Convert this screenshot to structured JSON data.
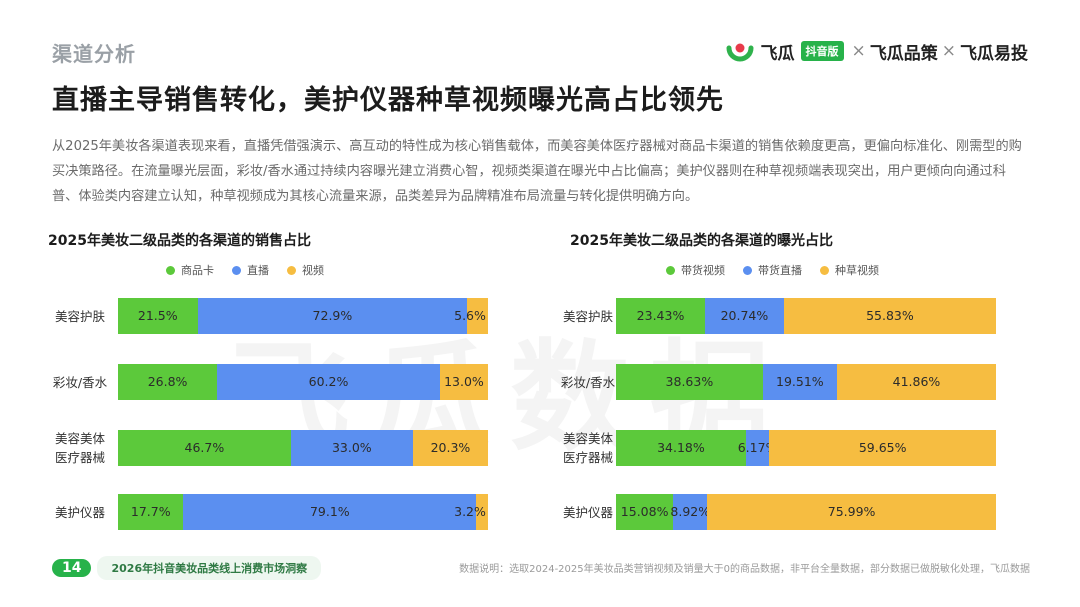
{
  "header": {
    "section": "渠道分析",
    "title": "直播主导销售转化，美护仪器种草视频曝光高占比领先",
    "body": "从2025年美妆各渠道表现来看，直播凭借强演示、高互动的特性成为核心销售载体，而美容美体医疗器械对商品卡渠道的销售依赖度更高，更偏向标准化、刚需型的购买决策路径。在流量曝光层面，彩妆/香水通过持续内容曝光建立消费心智，视频类渠道在曝光中占比偏高；美护仪器则在种草视频端表现突出，用户更倾向向通过科普、体验类内容建立认知，种草视频成为其核心流量来源，品类差异为品牌精准布局流量与转化提供明确方向。"
  },
  "brand": {
    "name1": "飞瓜",
    "badge": "抖音版",
    "sep": "×",
    "name2": "飞瓜品策",
    "name3": "飞瓜易投"
  },
  "watermark": "飞瓜数据",
  "colors": {
    "green": "#5cc93b",
    "blue": "#5b8ff0",
    "yellow": "#f6bd41"
  },
  "chart_data": [
    {
      "type": "bar",
      "orientation": "horizontal-stacked-100",
      "title": "2025年美妆二级品类的各渠道的销售占比",
      "categories": [
        "美容护肤",
        "彩妆/香水",
        "美容美体医疗器械",
        "美护仪器"
      ],
      "category_lines": [
        [
          "美容护肤"
        ],
        [
          "彩妆/香水"
        ],
        [
          "美容美体",
          "医疗器械"
        ],
        [
          "美护仪器"
        ]
      ],
      "series": [
        {
          "name": "商品卡",
          "color": "#5cc93b",
          "values": [
            21.5,
            26.8,
            46.7,
            17.7
          ],
          "labels": [
            "21.5%",
            "26.8%",
            "46.7%",
            "17.7%"
          ]
        },
        {
          "name": "直播",
          "color": "#5b8ff0",
          "values": [
            72.9,
            60.2,
            33.0,
            79.1
          ],
          "labels": [
            "72.9%",
            "60.2%",
            "33.0%",
            "79.1%"
          ]
        },
        {
          "name": "视频",
          "color": "#f6bd41",
          "values": [
            5.6,
            13.0,
            20.3,
            3.2
          ],
          "labels": [
            "5.6%",
            "13.0%",
            "20.3%",
            "3.2%"
          ]
        }
      ],
      "xlim": [
        0,
        100
      ],
      "legend": "top"
    },
    {
      "type": "bar",
      "orientation": "horizontal-stacked-100",
      "title": "2025年美妆二级品类的各渠道的曝光占比",
      "categories": [
        "美容护肤",
        "彩妆/香水",
        "美容美体医疗器械",
        "美护仪器"
      ],
      "category_lines": [
        [
          "美容护肤"
        ],
        [
          "彩妆/香水"
        ],
        [
          "美容美体",
          "医疗器械"
        ],
        [
          "美护仪器"
        ]
      ],
      "series": [
        {
          "name": "带货视频",
          "color": "#5cc93b",
          "values": [
            23.43,
            38.63,
            34.18,
            15.08
          ],
          "labels": [
            "23.43%",
            "38.63%",
            "34.18%",
            "15.08%"
          ]
        },
        {
          "name": "带货直播",
          "color": "#5b8ff0",
          "values": [
            20.74,
            19.51,
            6.17,
            8.92
          ],
          "labels": [
            "20.74%",
            "19.51%",
            "6.17%",
            "8.92%"
          ]
        },
        {
          "name": "种草视频",
          "color": "#f6bd41",
          "values": [
            55.83,
            41.86,
            59.65,
            75.99
          ],
          "labels": [
            "55.83%",
            "41.86%",
            "59.65%",
            "75.99%"
          ]
        }
      ],
      "xlim": [
        0,
        100
      ],
      "legend": "top"
    }
  ],
  "footer": {
    "page": "14",
    "report": "2026年抖音美妆品类线上消费市场洞察",
    "note": "数据说明：选取2024-2025年美妆品类营销视频及销量大于0的商品数据，非平台全量数据，部分数据已做脱敏化处理，飞瓜数据"
  }
}
